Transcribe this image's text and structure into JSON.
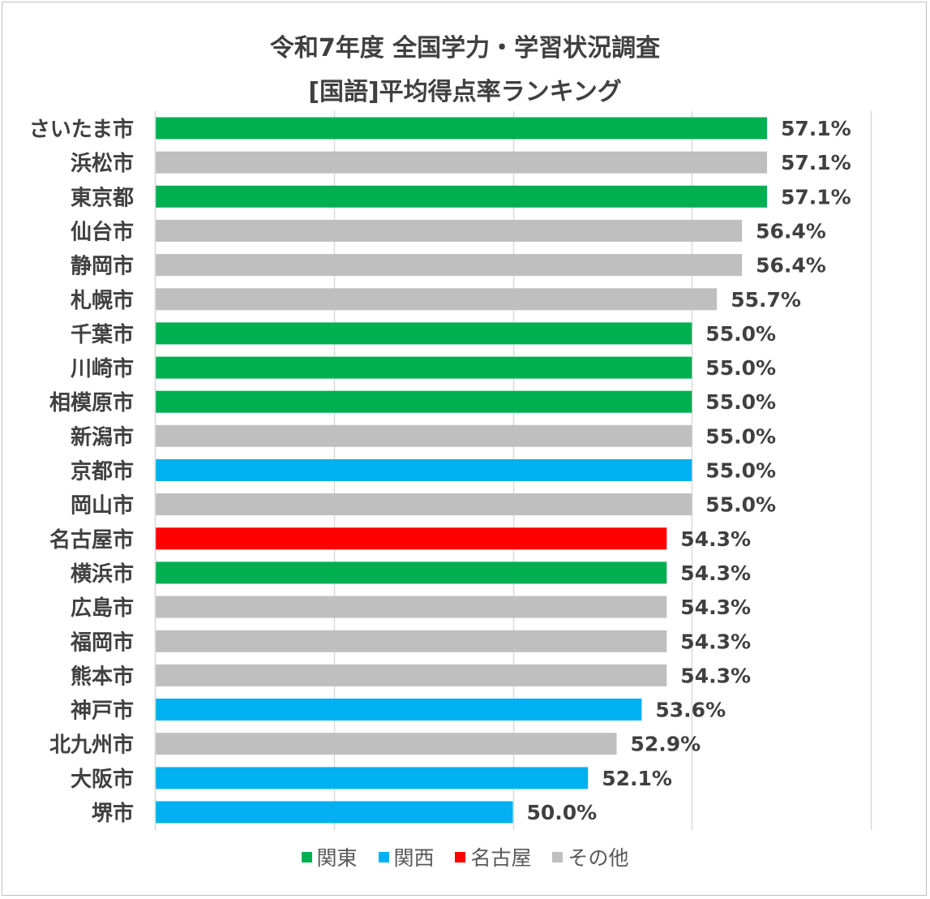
{
  "chart_data": {
    "type": "bar",
    "orientation": "horizontal",
    "title": "令和7年度 全国学力・学習状況調査",
    "subtitle": "[国語]平均得点率ランキング",
    "value_suffix": "%",
    "xlim": [
      40,
      60
    ],
    "grid": true,
    "legend_position": "bottom",
    "categories": [
      "さいたま市",
      "浜松市",
      "東京都",
      "仙台市",
      "静岡市",
      "札幌市",
      "千葉市",
      "川崎市",
      "相模原市",
      "新潟市",
      "京都市",
      "岡山市",
      "名古屋市",
      "横浜市",
      "広島市",
      "福岡市",
      "熊本市",
      "神戸市",
      "北九州市",
      "大阪市",
      "堺市"
    ],
    "values": [
      57.1,
      57.1,
      57.1,
      56.4,
      56.4,
      55.7,
      55.0,
      55.0,
      55.0,
      55.0,
      55.0,
      55.0,
      54.3,
      54.3,
      54.3,
      54.3,
      54.3,
      53.6,
      52.9,
      52.1,
      50.0
    ],
    "value_labels": [
      "57.1%",
      "57.1%",
      "57.1%",
      "56.4%",
      "56.4%",
      "55.7%",
      "55.0%",
      "55.0%",
      "55.0%",
      "55.0%",
      "55.0%",
      "55.0%",
      "54.3%",
      "54.3%",
      "54.3%",
      "54.3%",
      "54.3%",
      "53.6%",
      "52.9%",
      "52.1%",
      "50.0%"
    ],
    "groups": [
      "関東",
      "その他",
      "関東",
      "その他",
      "その他",
      "その他",
      "関東",
      "関東",
      "関東",
      "その他",
      "関西",
      "その他",
      "名古屋",
      "関東",
      "その他",
      "その他",
      "その他",
      "関西",
      "その他",
      "関西",
      "関西"
    ],
    "legend": [
      {
        "name": "関東",
        "color": "#00b050"
      },
      {
        "name": "関西",
        "color": "#00b0f0"
      },
      {
        "name": "名古屋",
        "color": "#ff0000"
      },
      {
        "name": "その他",
        "color": "#bfbfbf"
      }
    ]
  }
}
